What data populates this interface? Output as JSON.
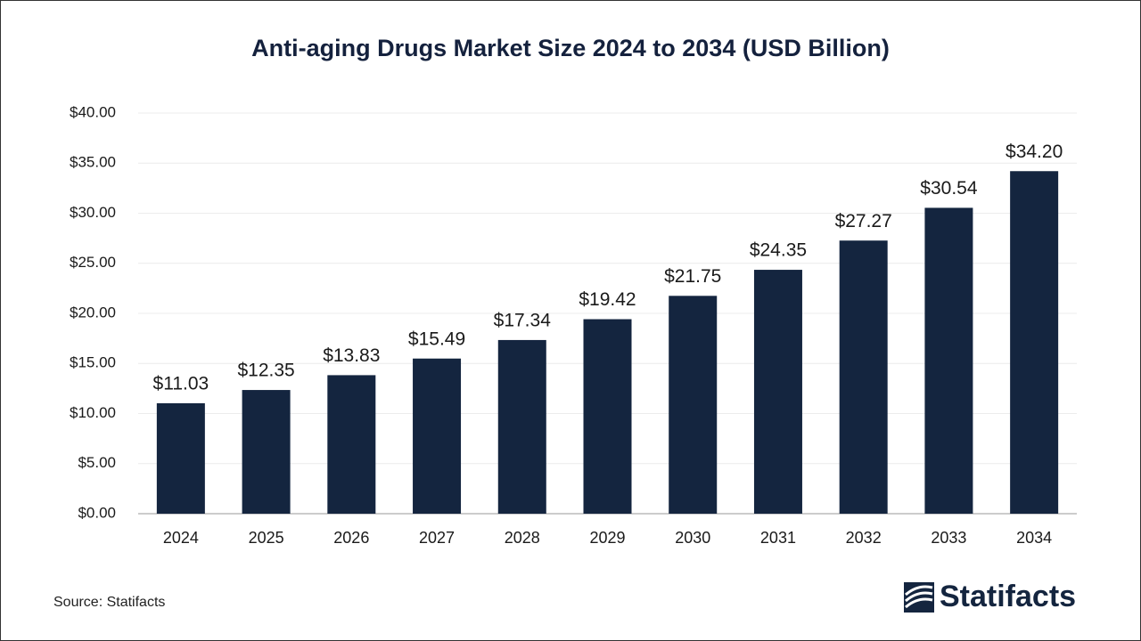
{
  "chart_data": {
    "type": "bar",
    "title": "Anti-aging Drugs Market Size 2024 to 2034 (USD Billion)",
    "categories": [
      "2024",
      "2025",
      "2026",
      "2027",
      "2028",
      "2029",
      "2030",
      "2031",
      "2032",
      "2033",
      "2034"
    ],
    "values": [
      11.03,
      12.35,
      13.83,
      15.49,
      17.34,
      19.42,
      21.75,
      24.35,
      27.27,
      30.54,
      34.2
    ],
    "value_labels": [
      "$11.03",
      "$12.35",
      "$13.83",
      "$15.49",
      "$17.34",
      "$19.42",
      "$21.75",
      "$24.35",
      "$27.27",
      "$30.54",
      "$34.20"
    ],
    "color": "#14253f",
    "ylim": [
      0,
      40
    ],
    "yticks": [
      {
        "value": 0,
        "label": "$0.00"
      },
      {
        "value": 5,
        "label": "$5.00"
      },
      {
        "value": 10,
        "label": "$10.00"
      },
      {
        "value": 15,
        "label": "$15.00"
      },
      {
        "value": 20,
        "label": "$20.00"
      },
      {
        "value": 25,
        "label": "$25.00"
      },
      {
        "value": 30,
        "label": "$30.00"
      },
      {
        "value": 35,
        "label": "$35.00"
      },
      {
        "value": 40,
        "label": "$40.00"
      }
    ],
    "grid": true,
    "source": "Source: Statifacts",
    "brand": "Statifacts"
  }
}
